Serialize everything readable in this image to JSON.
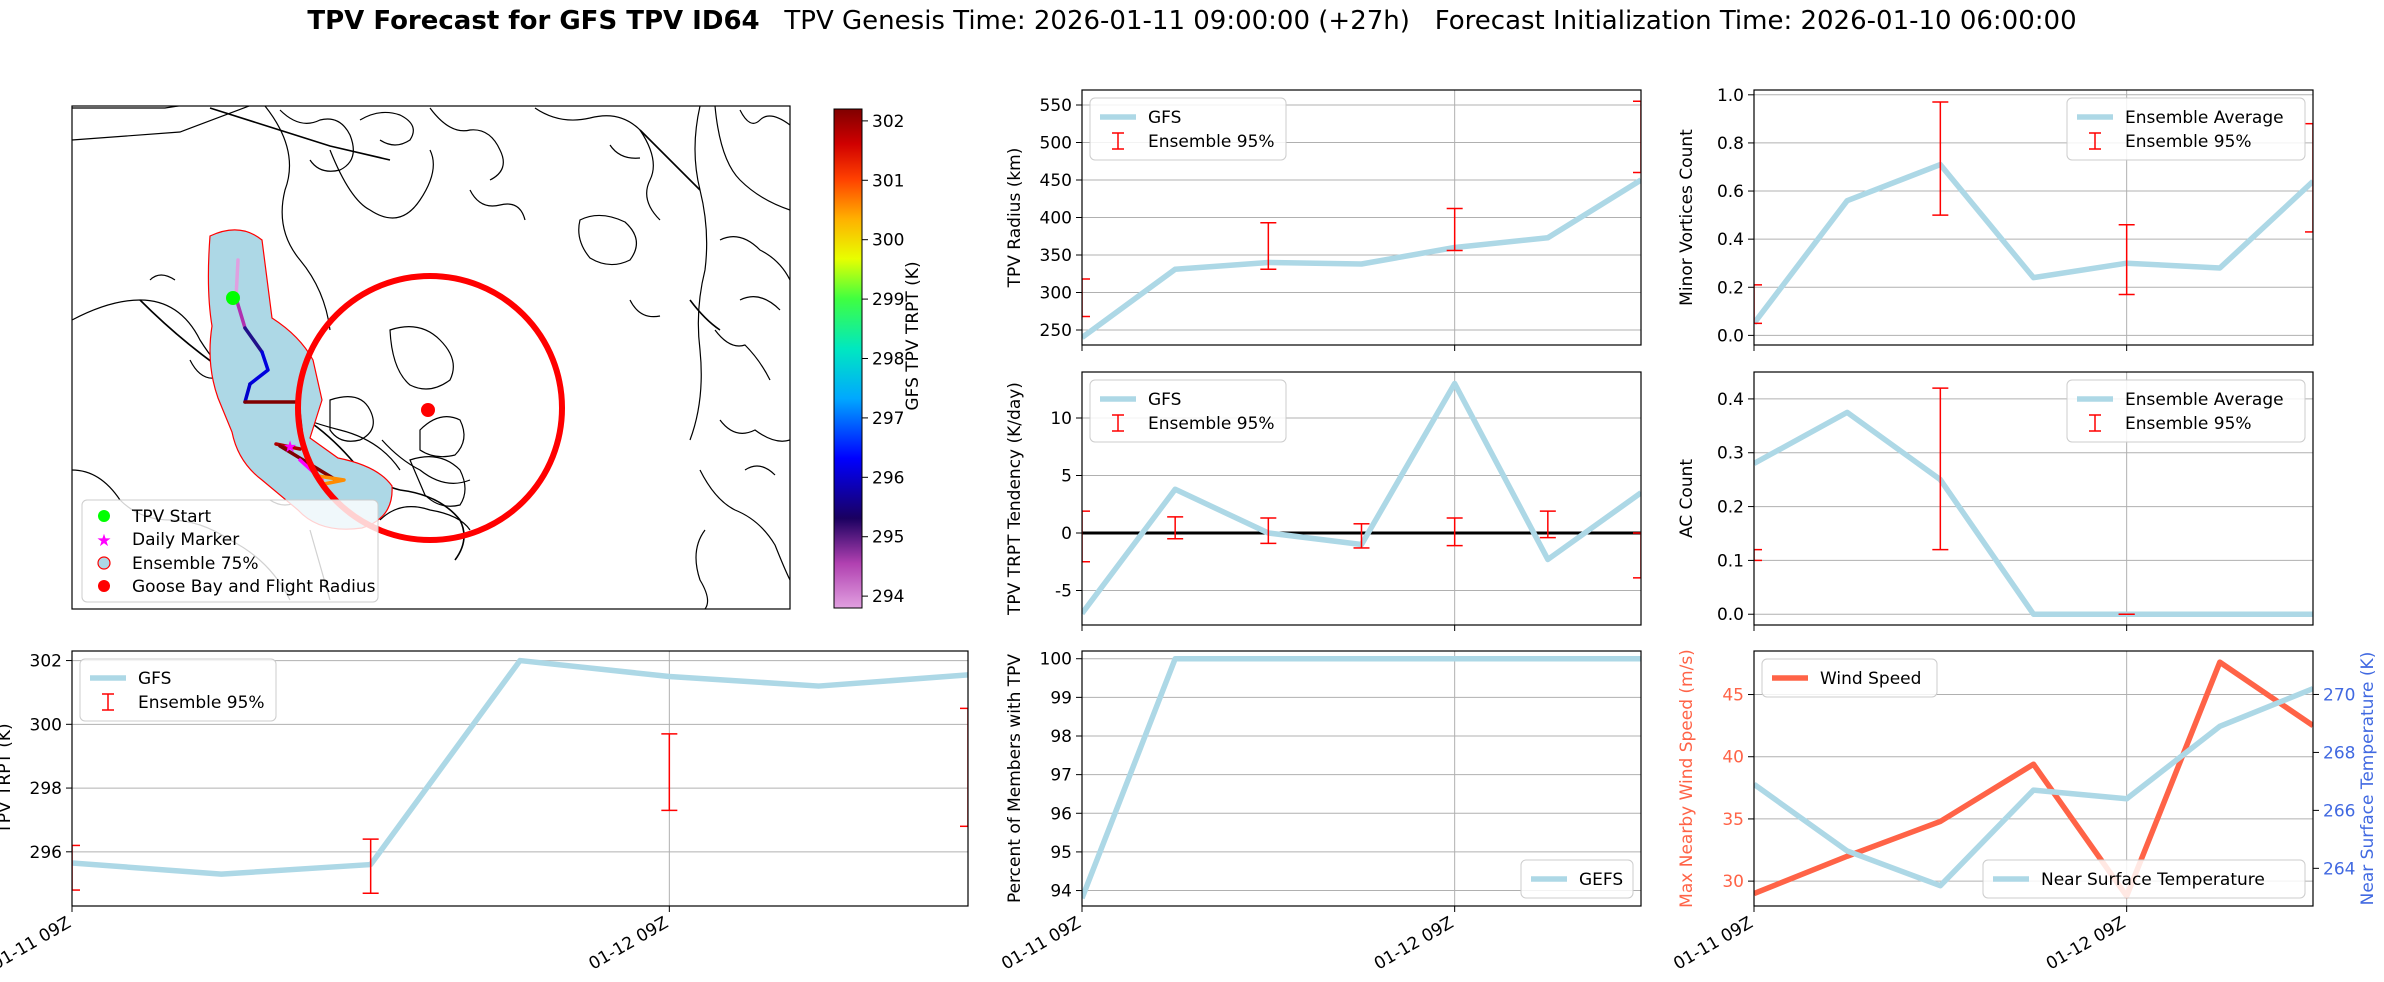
{
  "header": {
    "title_bold": "TPV Forecast for GFS TPV ID64",
    "genesis": "TPV Genesis Time: 2026-01-11 09:00:00 (+27h)",
    "init": "Forecast Initialization Time: 2026-01-10 06:00:00"
  },
  "map": {
    "legend": [
      "TPV Start",
      "Daily Marker",
      "Ensemble 75%",
      "Goose Bay and Flight Radius"
    ],
    "colorbar": {
      "label": "GFS TPV TRPT (K)",
      "range": [
        293.8,
        302.2
      ],
      "ticks": [
        "294",
        "295",
        "296",
        "297",
        "298",
        "299",
        "300",
        "301",
        "302"
      ]
    },
    "colors": {
      "start": "#00ff00",
      "daily": "#ff00ff",
      "goose": "#ff0000",
      "cone": "#add8e6"
    }
  },
  "chart_data": [
    {
      "id": "radius",
      "type": "line",
      "ylabel": "TPV Radius (km)",
      "xlim": [
        0,
        6
      ],
      "ylim": [
        230,
        570
      ],
      "yticks": [
        250,
        300,
        350,
        400,
        450,
        500,
        550
      ],
      "xticks": [],
      "hline": null,
      "legend": {
        "position": "upper-left",
        "line": "GFS",
        "err": "Ensemble 95%"
      },
      "series": [
        {
          "name": "GFS",
          "x": [
            0,
            1,
            2,
            3,
            4,
            5,
            6
          ],
          "values": [
            240,
            331,
            340,
            338,
            360,
            373,
            450
          ]
        }
      ],
      "errors": [
        {
          "x": 0,
          "low": 268,
          "high": 318
        },
        {
          "x": 2,
          "low": 331,
          "high": 393
        },
        {
          "x": 4,
          "low": 356,
          "high": 412
        },
        {
          "x": 6,
          "low": 460,
          "high": 555
        }
      ]
    },
    {
      "id": "minor",
      "type": "line",
      "ylabel": "Minor Vortices Count",
      "xlim": [
        0,
        6
      ],
      "ylim": [
        -0.04,
        1.02
      ],
      "yticks": [
        0.0,
        0.2,
        0.4,
        0.6,
        0.8,
        1.0
      ],
      "tickfmt": 1,
      "xticks": [],
      "hline": null,
      "legend": {
        "position": "upper-right",
        "line": "Ensemble Average",
        "err": "Ensemble 95%"
      },
      "series": [
        {
          "name": "Ensemble Average",
          "x": [
            0,
            1,
            2,
            3,
            4,
            5,
            6
          ],
          "values": [
            0.05,
            0.56,
            0.71,
            0.24,
            0.3,
            0.28,
            0.64
          ]
        }
      ],
      "errors": [
        {
          "x": 0,
          "low": 0.05,
          "high": 0.21
        },
        {
          "x": 2,
          "low": 0.5,
          "high": 0.97
        },
        {
          "x": 4,
          "low": 0.17,
          "high": 0.46
        },
        {
          "x": 6,
          "low": 0.43,
          "high": 0.88
        }
      ]
    },
    {
      "id": "tendency",
      "type": "line",
      "ylabel": "TPV TRPT Tendency (K/day)",
      "xlim": [
        0,
        6
      ],
      "ylim": [
        -8,
        14
      ],
      "yticks": [
        -5,
        0,
        5,
        10
      ],
      "xticks": [],
      "hline": 0,
      "legend": {
        "position": "upper-left",
        "line": "GFS",
        "err": "Ensemble 95%"
      },
      "series": [
        {
          "name": "GFS",
          "x": [
            0,
            1,
            2,
            3,
            4,
            5,
            6
          ],
          "values": [
            -7.0,
            3.8,
            0.0,
            -1.0,
            13.0,
            -2.3,
            3.5
          ]
        }
      ],
      "errors": [
        {
          "x": 0,
          "low": -2.5,
          "high": 1.9
        },
        {
          "x": 1,
          "low": -0.5,
          "high": 1.4
        },
        {
          "x": 2,
          "low": -0.9,
          "high": 1.3
        },
        {
          "x": 3,
          "low": -1.3,
          "high": 0.8
        },
        {
          "x": 4,
          "low": -1.1,
          "high": 1.3
        },
        {
          "x": 5,
          "low": -0.4,
          "high": 1.9
        },
        {
          "x": 6,
          "low": -3.9,
          "high": 0.0
        }
      ]
    },
    {
      "id": "ac",
      "type": "line",
      "ylabel": "AC Count",
      "xlim": [
        0,
        6
      ],
      "ylim": [
        -0.02,
        0.45
      ],
      "yticks": [
        0.0,
        0.1,
        0.2,
        0.3,
        0.4
      ],
      "tickfmt": 1,
      "xticks": [],
      "hline": null,
      "legend": {
        "position": "upper-right",
        "line": "Ensemble Average",
        "err": "Ensemble 95%"
      },
      "series": [
        {
          "name": "Ensemble Average",
          "x": [
            0,
            1,
            2,
            3,
            4,
            5,
            6
          ],
          "values": [
            0.28,
            0.375,
            0.25,
            0.0,
            0.0,
            0.0,
            0.0
          ]
        }
      ],
      "errors": [
        {
          "x": 0,
          "low": 0.1,
          "high": 0.12
        },
        {
          "x": 2,
          "low": 0.12,
          "high": 0.42
        },
        {
          "x": 4,
          "low": 0.0,
          "high": 0.0
        }
      ]
    },
    {
      "id": "trpt",
      "type": "line",
      "ylabel": "TPV TRPT (K)",
      "xlim": [
        0,
        6
      ],
      "ylim": [
        294.3,
        302.3
      ],
      "yticks": [
        296,
        298,
        300,
        302
      ],
      "xticks": [
        {
          "x": 0,
          "label": "01-11 09Z"
        },
        {
          "x": 4,
          "label": "01-12 09Z"
        }
      ],
      "hline": null,
      "legend": {
        "position": "upper-left",
        "line": "GFS",
        "err": "Ensemble 95%"
      },
      "series": [
        {
          "name": "GFS",
          "x": [
            0,
            1,
            2,
            3,
            4,
            5,
            6
          ],
          "values": [
            295.65,
            295.3,
            295.6,
            302.0,
            301.5,
            301.2,
            301.55
          ]
        }
      ],
      "errors": [
        {
          "x": 0,
          "low": 294.8,
          "high": 296.2
        },
        {
          "x": 2,
          "low": 294.7,
          "high": 296.4
        },
        {
          "x": 4,
          "low": 297.3,
          "high": 299.7
        },
        {
          "x": 6,
          "low": 296.8,
          "high": 300.5
        }
      ]
    },
    {
      "id": "percent",
      "type": "line",
      "ylabel": "Percent of Members with TPV",
      "xlim": [
        0,
        6
      ],
      "ylim": [
        93.6,
        100.2
      ],
      "yticks": [
        94,
        95,
        96,
        97,
        98,
        99,
        100
      ],
      "xticks": [
        {
          "x": 0,
          "label": "01-11 09Z"
        },
        {
          "x": 4,
          "label": "01-12 09Z"
        }
      ],
      "hline": null,
      "legend": {
        "position": "lower-right",
        "line": "GEFS",
        "err": null
      },
      "series": [
        {
          "name": "GEFS",
          "x": [
            0,
            1,
            2,
            3,
            4,
            5,
            6
          ],
          "values": [
            93.8,
            100,
            100,
            100,
            100,
            100,
            100
          ]
        }
      ],
      "errors": []
    },
    {
      "id": "wind",
      "type": "line",
      "ylabel": "Max Nearby Wind Speed (m/s)",
      "ylabel2": "Near Surface Temperature (K)",
      "xlim": [
        0,
        6
      ],
      "ylim": [
        28,
        48.5
      ],
      "ylim2": [
        262.7,
        271.5
      ],
      "yticks": [
        30,
        35,
        40,
        45
      ],
      "yticks2": [
        264,
        266,
        268,
        270
      ],
      "xticks": [
        {
          "x": 0,
          "label": "01-11 09Z"
        },
        {
          "x": 4,
          "label": "01-12 09Z"
        }
      ],
      "hline": null,
      "legend": {
        "position": "upper-left",
        "line": "Wind Speed",
        "err": null
      },
      "legend2": {
        "position": "lower-right",
        "line": "Near Surface Temperature"
      },
      "series": [
        {
          "name": "Wind Speed",
          "x": [
            0,
            1,
            2,
            3,
            4,
            5,
            6
          ],
          "values": [
            29.0,
            32.0,
            34.8,
            39.4,
            28.8,
            47.6,
            42.5
          ]
        },
        {
          "name": "Near Surface Temperature",
          "x": [
            0,
            1,
            2,
            3,
            4,
            5,
            6
          ],
          "values": [
            266.9,
            264.6,
            263.4,
            266.7,
            266.4,
            268.9,
            270.2
          ]
        }
      ],
      "errors": []
    }
  ],
  "colors": {
    "line": "#add8e6",
    "err": "#ff0000",
    "wind": "#ff6347",
    "temp": "#4169e1"
  }
}
